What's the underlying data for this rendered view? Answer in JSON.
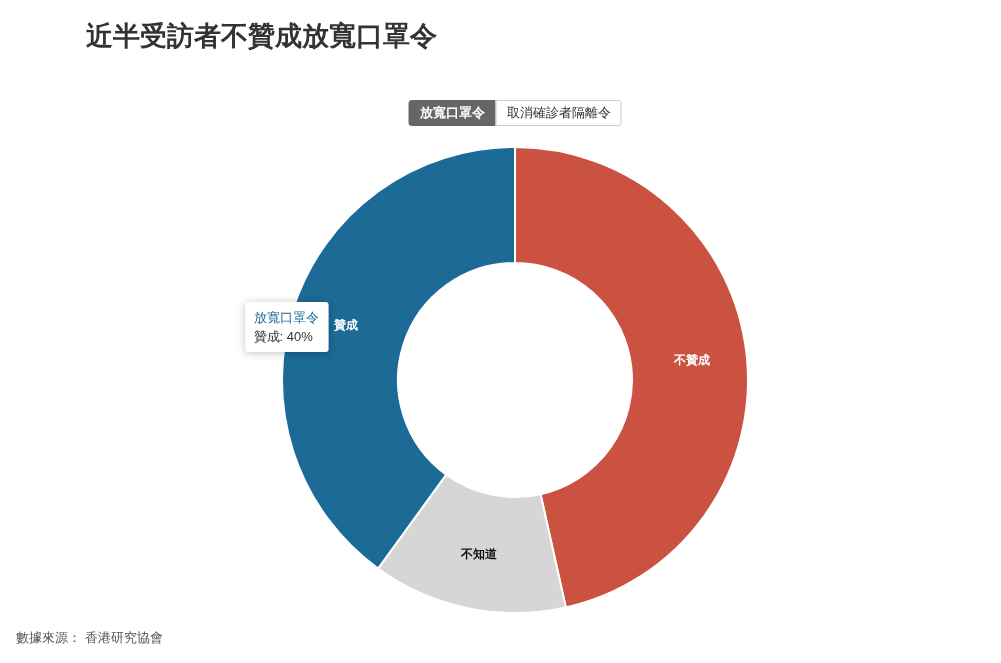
{
  "chart_data": {
    "type": "donut",
    "title": "近半受訪者不贊成放寬口罩令",
    "categories": [
      "不贊成",
      "不知道",
      "贊成"
    ],
    "series": [
      {
        "name": "放寬口罩令",
        "values": [
          46.5,
          13.5,
          40
        ]
      }
    ],
    "colors": [
      "#cb5140",
      "#d6d6d6",
      "#1c6a96"
    ],
    "annotations": [
      "取消確診者隔離令",
      {
        "text": "贊成: 40%",
        "x": "贊成"
      },
      "數據來源： 香港研究協會"
    ]
  }
}
